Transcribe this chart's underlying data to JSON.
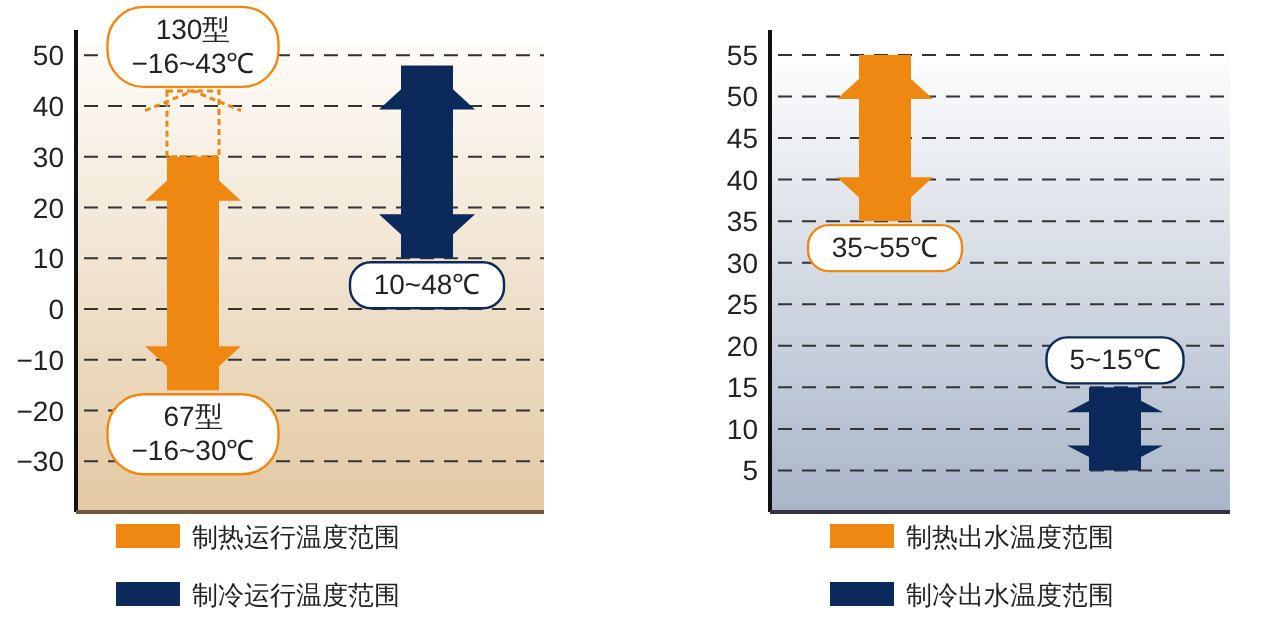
{
  "chart_data": [
    {
      "type": "bar",
      "categories": [
        null,
        null
      ],
      "ylim": [
        -40,
        55
      ],
      "yticks": [
        -30,
        -20,
        -10,
        0,
        10,
        20,
        30,
        40,
        50
      ],
      "grid": "y",
      "legend": "bottom",
      "series": [
        {
          "name": "制热运行温度范围",
          "color": "#ee8811",
          "values": [
            46,
            null
          ],
          "base": [
            -16,
            null
          ]
        },
        {
          "name": "制冷运行温度范围",
          "color": "#0b2a5b",
          "values": [
            null,
            38
          ],
          "base": [
            null,
            10
          ]
        },
        {
          "color": "#ee8811",
          "values": [
            13,
            null
          ],
          "base": [
            30,
            null
          ],
          "line_style": "dashed"
        }
      ],
      "annotations": [
        {
          "text": "130型\n−16~43℃",
          "y": 43
        },
        {
          "text": "67型\n−16~30℃",
          "y": -16
        },
        {
          "text": "10~48℃",
          "y": 10
        }
      ]
    },
    {
      "type": "bar",
      "categories": [
        null,
        null
      ],
      "ylim": [
        0,
        58
      ],
      "yticks": [
        5,
        10,
        15,
        20,
        25,
        30,
        35,
        40,
        45,
        50,
        55
      ],
      "grid": "y",
      "legend": "bottom",
      "series": [
        {
          "name": "制热出水温度范围",
          "color": "#ee8811",
          "values": [
            20,
            null
          ],
          "base": [
            35,
            null
          ]
        },
        {
          "name": "制冷出水温度范围",
          "color": "#0b2a5b",
          "values": [
            null,
            10
          ],
          "base": [
            null,
            5
          ]
        }
      ],
      "annotations": [
        {
          "text": "35~55℃",
          "y": 35
        },
        {
          "text": "5~15℃",
          "y": 15
        }
      ]
    }
  ]
}
